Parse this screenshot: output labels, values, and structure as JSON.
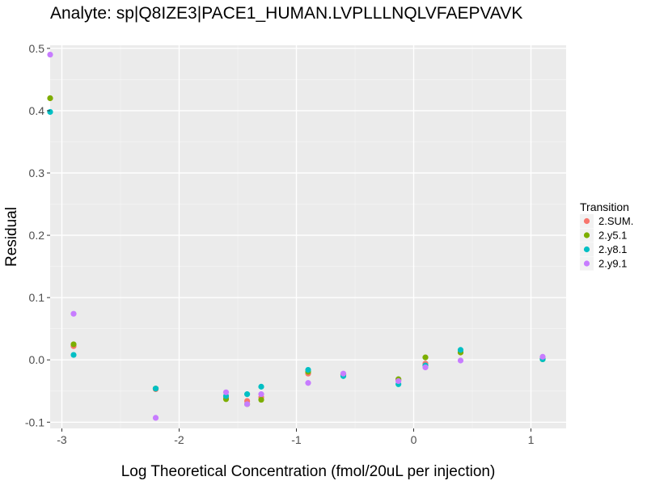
{
  "chart_data": {
    "type": "scatter",
    "title": "Analyte: sp|Q8IZE3|PACE1_HUMAN.LVPLLLNQLVFAEPVAVK",
    "xlabel": "Log Theoretical Concentration (fmol/20uL per injection)",
    "ylabel": "Residual",
    "xlim": [
      -3.1,
      1.3
    ],
    "ylim": [
      -0.11,
      0.505
    ],
    "x_ticks": [
      -3,
      -2,
      -1,
      0,
      1
    ],
    "x_tick_labels": [
      "-3",
      "-2",
      "-1",
      "0",
      "1"
    ],
    "y_ticks": [
      -0.1,
      0.0,
      0.1,
      0.2,
      0.3,
      0.4,
      0.5
    ],
    "y_tick_labels": [
      "-0.1",
      "0.0",
      "0.1",
      "0.2",
      "0.3",
      "0.4",
      "0.5"
    ],
    "grid": true,
    "legend_title": "Transition",
    "legend_position": "right",
    "series": [
      {
        "name": "2.SUM.",
        "color": "#F8766D",
        "x": [
          -3.1,
          -2.9,
          -2.2,
          -1.6,
          -1.42,
          -1.3,
          -0.9,
          -0.6,
          -0.13,
          0.1,
          0.4,
          1.1
        ],
        "y": [
          0.42,
          0.022,
          -0.047,
          -0.06,
          -0.066,
          -0.06,
          -0.022,
          -0.024,
          -0.033,
          -0.006,
          0.012,
          0.002
        ]
      },
      {
        "name": "2.y5.1",
        "color": "#7CAE00",
        "x": [
          -3.1,
          -2.9,
          -2.2,
          -1.6,
          -1.42,
          -1.3,
          -0.9,
          -0.6,
          -0.13,
          0.1,
          0.4,
          1.1
        ],
        "y": [
          0.42,
          0.025,
          -0.046,
          -0.063,
          -0.071,
          -0.064,
          -0.019,
          -0.024,
          -0.031,
          0.004,
          0.012,
          0.001
        ]
      },
      {
        "name": "2.y8.1",
        "color": "#00BFC4",
        "x": [
          -3.1,
          -2.9,
          -2.2,
          -1.6,
          -1.42,
          -1.3,
          -0.9,
          -0.6,
          -0.13,
          0.1,
          0.4,
          1.1
        ],
        "y": [
          0.398,
          0.008,
          -0.046,
          -0.058,
          -0.055,
          -0.043,
          -0.016,
          -0.026,
          -0.039,
          -0.009,
          0.016,
          0.001
        ]
      },
      {
        "name": "2.y9.1",
        "color": "#C77CFF",
        "x": [
          -3.1,
          -2.9,
          -2.2,
          -1.6,
          -1.42,
          -1.3,
          -0.9,
          -0.6,
          -0.13,
          0.1,
          0.4,
          1.1
        ],
        "y": [
          0.49,
          0.074,
          -0.093,
          -0.052,
          -0.071,
          -0.055,
          -0.037,
          -0.022,
          -0.034,
          -0.012,
          -0.001,
          0.005
        ]
      }
    ]
  }
}
